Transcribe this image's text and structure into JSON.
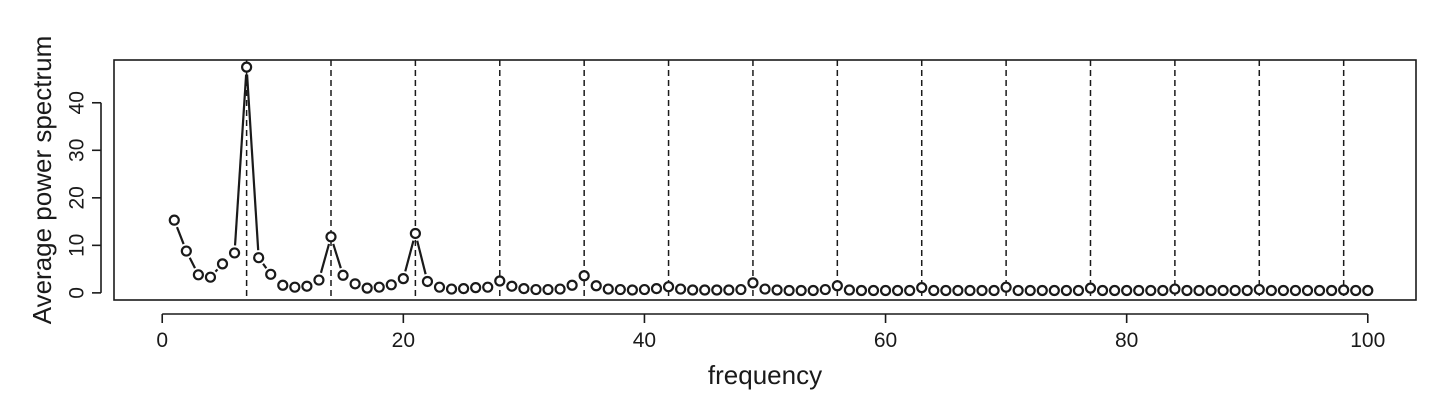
{
  "chart_data": {
    "type": "scatter",
    "title": "",
    "xlabel": "frequency",
    "ylabel": "Average power spectrum",
    "xlim": [
      -4,
      104
    ],
    "ylim": [
      -1.5,
      49
    ],
    "x_ticks": [
      0,
      20,
      40,
      60,
      80,
      100
    ],
    "y_ticks": [
      0,
      10,
      20,
      30,
      40
    ],
    "grid": false,
    "legend": "none",
    "reference_lines": {
      "style": "dashed",
      "orientation": "vertical",
      "x": [
        7,
        14,
        21,
        28,
        35,
        42,
        49,
        56,
        63,
        70,
        77,
        84,
        91,
        98
      ]
    },
    "line_color": "#1a1a1a",
    "series": [
      {
        "marker": "open-circle",
        "connected": true,
        "x": [
          1,
          2,
          3,
          4,
          5,
          6,
          7,
          8,
          9,
          10,
          11,
          12,
          13,
          14,
          15,
          16,
          17,
          18,
          19,
          20,
          21,
          22,
          23,
          24,
          25,
          26,
          27,
          28,
          29,
          30,
          31,
          32,
          33,
          34,
          35,
          36,
          37,
          38,
          39,
          40,
          41,
          42,
          43,
          44,
          45,
          46,
          47,
          48,
          49,
          50,
          51,
          52,
          53,
          54,
          55,
          56,
          57,
          58,
          59,
          60,
          61,
          62,
          63,
          64,
          65,
          66,
          67,
          68,
          69,
          70,
          71,
          72,
          73,
          74,
          75,
          76,
          77,
          78,
          79,
          80,
          81,
          82,
          83,
          84,
          85,
          86,
          87,
          88,
          89,
          90,
          91,
          92,
          93,
          94,
          95,
          96,
          97,
          98,
          99,
          100
        ],
        "values": [
          15.3,
          8.8,
          3.8,
          3.3,
          6.1,
          8.4,
          47.5,
          7.4,
          3.9,
          1.6,
          1.2,
          1.4,
          2.7,
          11.8,
          3.7,
          1.9,
          1.0,
          1.2,
          1.7,
          3.0,
          12.5,
          2.4,
          1.2,
          0.8,
          0.9,
          1.1,
          1.2,
          2.5,
          1.4,
          0.9,
          0.7,
          0.7,
          0.8,
          1.6,
          3.6,
          1.5,
          0.8,
          0.7,
          0.6,
          0.7,
          0.9,
          1.3,
          0.8,
          0.6,
          0.6,
          0.6,
          0.6,
          0.7,
          2.1,
          0.8,
          0.6,
          0.5,
          0.5,
          0.5,
          0.7,
          1.5,
          0.6,
          0.5,
          0.5,
          0.5,
          0.5,
          0.5,
          1.1,
          0.5,
          0.5,
          0.5,
          0.5,
          0.5,
          0.5,
          1.2,
          0.5,
          0.5,
          0.5,
          0.5,
          0.5,
          0.5,
          1.0,
          0.5,
          0.5,
          0.5,
          0.5,
          0.5,
          0.5,
          0.8,
          0.5,
          0.5,
          0.5,
          0.5,
          0.5,
          0.5,
          0.7,
          0.5,
          0.5,
          0.5,
          0.5,
          0.5,
          0.5,
          0.6,
          0.5,
          0.5
        ]
      }
    ]
  }
}
